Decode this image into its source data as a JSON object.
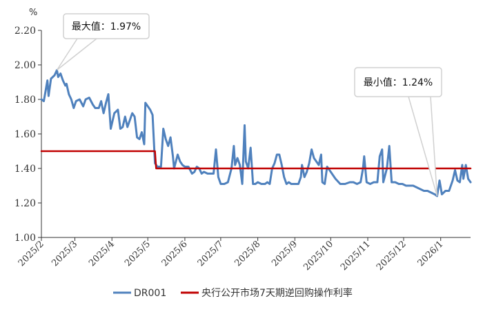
{
  "chart_data": {
    "type": "line",
    "unit": "%",
    "ylim": [
      1.0,
      2.2
    ],
    "yticks": [
      "2.20",
      "2.00",
      "1.80",
      "1.60",
      "1.40",
      "1.20",
      "1.00"
    ],
    "x_categories": [
      "2025/2",
      "2025/3",
      "2025/4",
      "2025/5",
      "2025/6",
      "2025/7",
      "2025/8",
      "2025/9",
      "2025/10",
      "2025/11",
      "2025/12",
      "2026/1"
    ],
    "grid": false,
    "legend_position": "bottom",
    "series": [
      {
        "name": "DR001",
        "color": "#4f81bd",
        "points": [
          [
            "2025-02-01",
            1.8
          ],
          [
            "2025-02-03",
            1.79
          ],
          [
            "2025-02-06",
            1.91
          ],
          [
            "2025-02-07",
            1.82
          ],
          [
            "2025-02-09",
            1.92
          ],
          [
            "2025-02-12",
            1.94
          ],
          [
            "2025-02-14",
            1.97
          ],
          [
            "2025-02-15",
            1.93
          ],
          [
            "2025-02-17",
            1.95
          ],
          [
            "2025-02-19",
            1.91
          ],
          [
            "2025-02-21",
            1.88
          ],
          [
            "2025-02-22",
            1.89
          ],
          [
            "2025-02-24",
            1.83
          ],
          [
            "2025-02-26",
            1.8
          ],
          [
            "2025-02-28",
            1.75
          ],
          [
            "2025-03-02",
            1.79
          ],
          [
            "2025-03-05",
            1.8
          ],
          [
            "2025-03-08",
            1.76
          ],
          [
            "2025-03-10",
            1.8
          ],
          [
            "2025-03-13",
            1.81
          ],
          [
            "2025-03-16",
            1.77
          ],
          [
            "2025-03-18",
            1.75
          ],
          [
            "2025-03-21",
            1.75
          ],
          [
            "2025-03-23",
            1.79
          ],
          [
            "2025-03-25",
            1.72
          ],
          [
            "2025-03-27",
            1.78
          ],
          [
            "2025-03-29",
            1.83
          ],
          [
            "2025-03-31",
            1.63
          ],
          [
            "2025-04-03",
            1.72
          ],
          [
            "2025-04-06",
            1.74
          ],
          [
            "2025-04-08",
            1.63
          ],
          [
            "2025-04-10",
            1.64
          ],
          [
            "2025-04-12",
            1.7
          ],
          [
            "2025-04-14",
            1.64
          ],
          [
            "2025-04-16",
            1.68
          ],
          [
            "2025-04-18",
            1.72
          ],
          [
            "2025-04-20",
            1.7
          ],
          [
            "2025-04-22",
            1.58
          ],
          [
            "2025-04-24",
            1.57
          ],
          [
            "2025-04-26",
            1.61
          ],
          [
            "2025-04-28",
            1.54
          ],
          [
            "2025-04-29",
            1.78
          ],
          [
            "2025-05-01",
            1.76
          ],
          [
            "2025-05-03",
            1.74
          ],
          [
            "2025-05-05",
            1.71
          ],
          [
            "2025-05-07",
            1.43
          ],
          [
            "2025-05-09",
            1.41
          ],
          [
            "2025-05-12",
            1.41
          ],
          [
            "2025-05-14",
            1.63
          ],
          [
            "2025-05-16",
            1.57
          ],
          [
            "2025-05-18",
            1.53
          ],
          [
            "2025-05-20",
            1.58
          ],
          [
            "2025-05-22",
            1.47
          ],
          [
            "2025-05-23",
            1.4
          ],
          [
            "2025-05-26",
            1.48
          ],
          [
            "2025-05-28",
            1.44
          ],
          [
            "2025-05-30",
            1.42
          ],
          [
            "2025-06-01",
            1.41
          ],
          [
            "2025-06-04",
            1.41
          ],
          [
            "2025-06-07",
            1.37
          ],
          [
            "2025-06-09",
            1.38
          ],
          [
            "2025-06-11",
            1.41
          ],
          [
            "2025-06-13",
            1.4
          ],
          [
            "2025-06-15",
            1.37
          ],
          [
            "2025-06-17",
            1.38
          ],
          [
            "2025-06-20",
            1.37
          ],
          [
            "2025-06-23",
            1.37
          ],
          [
            "2025-06-25",
            1.37
          ],
          [
            "2025-06-27",
            1.51
          ],
          [
            "2025-06-29",
            1.35
          ],
          [
            "2025-07-01",
            1.31
          ],
          [
            "2025-07-04",
            1.31
          ],
          [
            "2025-07-07",
            1.32
          ],
          [
            "2025-07-10",
            1.4
          ],
          [
            "2025-07-12",
            1.53
          ],
          [
            "2025-07-13",
            1.42
          ],
          [
            "2025-07-15",
            1.46
          ],
          [
            "2025-07-17",
            1.42
          ],
          [
            "2025-07-19",
            1.31
          ],
          [
            "2025-07-21",
            1.65
          ],
          [
            "2025-07-22",
            1.44
          ],
          [
            "2025-07-24",
            1.4
          ],
          [
            "2025-07-26",
            1.52
          ],
          [
            "2025-07-28",
            1.31
          ],
          [
            "2025-07-30",
            1.31
          ],
          [
            "2025-08-01",
            1.32
          ],
          [
            "2025-08-04",
            1.31
          ],
          [
            "2025-08-07",
            1.31
          ],
          [
            "2025-08-09",
            1.32
          ],
          [
            "2025-08-11",
            1.31
          ],
          [
            "2025-08-13",
            1.4
          ],
          [
            "2025-08-15",
            1.43
          ],
          [
            "2025-08-17",
            1.48
          ],
          [
            "2025-08-19",
            1.48
          ],
          [
            "2025-08-21",
            1.42
          ],
          [
            "2025-08-23",
            1.35
          ],
          [
            "2025-08-25",
            1.31
          ],
          [
            "2025-08-27",
            1.32
          ],
          [
            "2025-08-29",
            1.31
          ],
          [
            "2025-09-01",
            1.31
          ],
          [
            "2025-09-04",
            1.31
          ],
          [
            "2025-09-06",
            1.35
          ],
          [
            "2025-09-07",
            1.42
          ],
          [
            "2025-09-09",
            1.35
          ],
          [
            "2025-09-11",
            1.38
          ],
          [
            "2025-09-13",
            1.43
          ],
          [
            "2025-09-15",
            1.51
          ],
          [
            "2025-09-17",
            1.46
          ],
          [
            "2025-09-19",
            1.44
          ],
          [
            "2025-09-21",
            1.42
          ],
          [
            "2025-09-23",
            1.48
          ],
          [
            "2025-09-24",
            1.32
          ],
          [
            "2025-09-26",
            1.31
          ],
          [
            "2025-09-28",
            1.41
          ],
          [
            "2025-10-01",
            1.38
          ],
          [
            "2025-10-05",
            1.34
          ],
          [
            "2025-10-09",
            1.31
          ],
          [
            "2025-10-13",
            1.31
          ],
          [
            "2025-10-17",
            1.32
          ],
          [
            "2025-10-20",
            1.32
          ],
          [
            "2025-10-23",
            1.31
          ],
          [
            "2025-10-26",
            1.32
          ],
          [
            "2025-10-28",
            1.4
          ],
          [
            "2025-10-29",
            1.47
          ],
          [
            "2025-10-31",
            1.32
          ],
          [
            "2025-11-03",
            1.31
          ],
          [
            "2025-11-06",
            1.32
          ],
          [
            "2025-11-09",
            1.32
          ],
          [
            "2025-11-11",
            1.47
          ],
          [
            "2025-11-13",
            1.51
          ],
          [
            "2025-11-14",
            1.32
          ],
          [
            "2025-11-17",
            1.4
          ],
          [
            "2025-11-19",
            1.53
          ],
          [
            "2025-11-21",
            1.32
          ],
          [
            "2025-11-24",
            1.32
          ],
          [
            "2025-11-27",
            1.31
          ],
          [
            "2025-11-30",
            1.31
          ],
          [
            "2025-12-03",
            1.3
          ],
          [
            "2025-12-06",
            1.3
          ],
          [
            "2025-12-09",
            1.3
          ],
          [
            "2025-12-12",
            1.29
          ],
          [
            "2025-12-15",
            1.28
          ],
          [
            "2025-12-18",
            1.27
          ],
          [
            "2025-12-21",
            1.27
          ],
          [
            "2025-12-24",
            1.26
          ],
          [
            "2025-12-27",
            1.25
          ],
          [
            "2025-12-29",
            1.24
          ],
          [
            "2025-12-31",
            1.33
          ],
          [
            "2026-01-02",
            1.25
          ],
          [
            "2026-01-05",
            1.27
          ],
          [
            "2026-01-08",
            1.27
          ],
          [
            "2026-01-11",
            1.33
          ],
          [
            "2026-01-13",
            1.39
          ],
          [
            "2026-01-15",
            1.33
          ],
          [
            "2026-01-17",
            1.32
          ],
          [
            "2026-01-19",
            1.42
          ],
          [
            "2026-01-20",
            1.34
          ],
          [
            "2026-01-22",
            1.42
          ],
          [
            "2026-01-24",
            1.34
          ],
          [
            "2026-01-26",
            1.32
          ]
        ]
      },
      {
        "name": "央行公开市场7天期逆回购操作利率",
        "color": "#c00000",
        "points": [
          [
            "2025-02-01",
            1.5
          ],
          [
            "2025-05-07",
            1.5
          ],
          [
            "2025-05-08",
            1.4
          ],
          [
            "2026-01-26",
            1.4
          ]
        ]
      }
    ],
    "annotations": [
      {
        "text": "最大值：1.97%",
        "x": "2025-02-14",
        "y": 1.97
      },
      {
        "text": "最小值：1.24%",
        "x": "2025-12-29",
        "y": 1.24
      }
    ]
  }
}
